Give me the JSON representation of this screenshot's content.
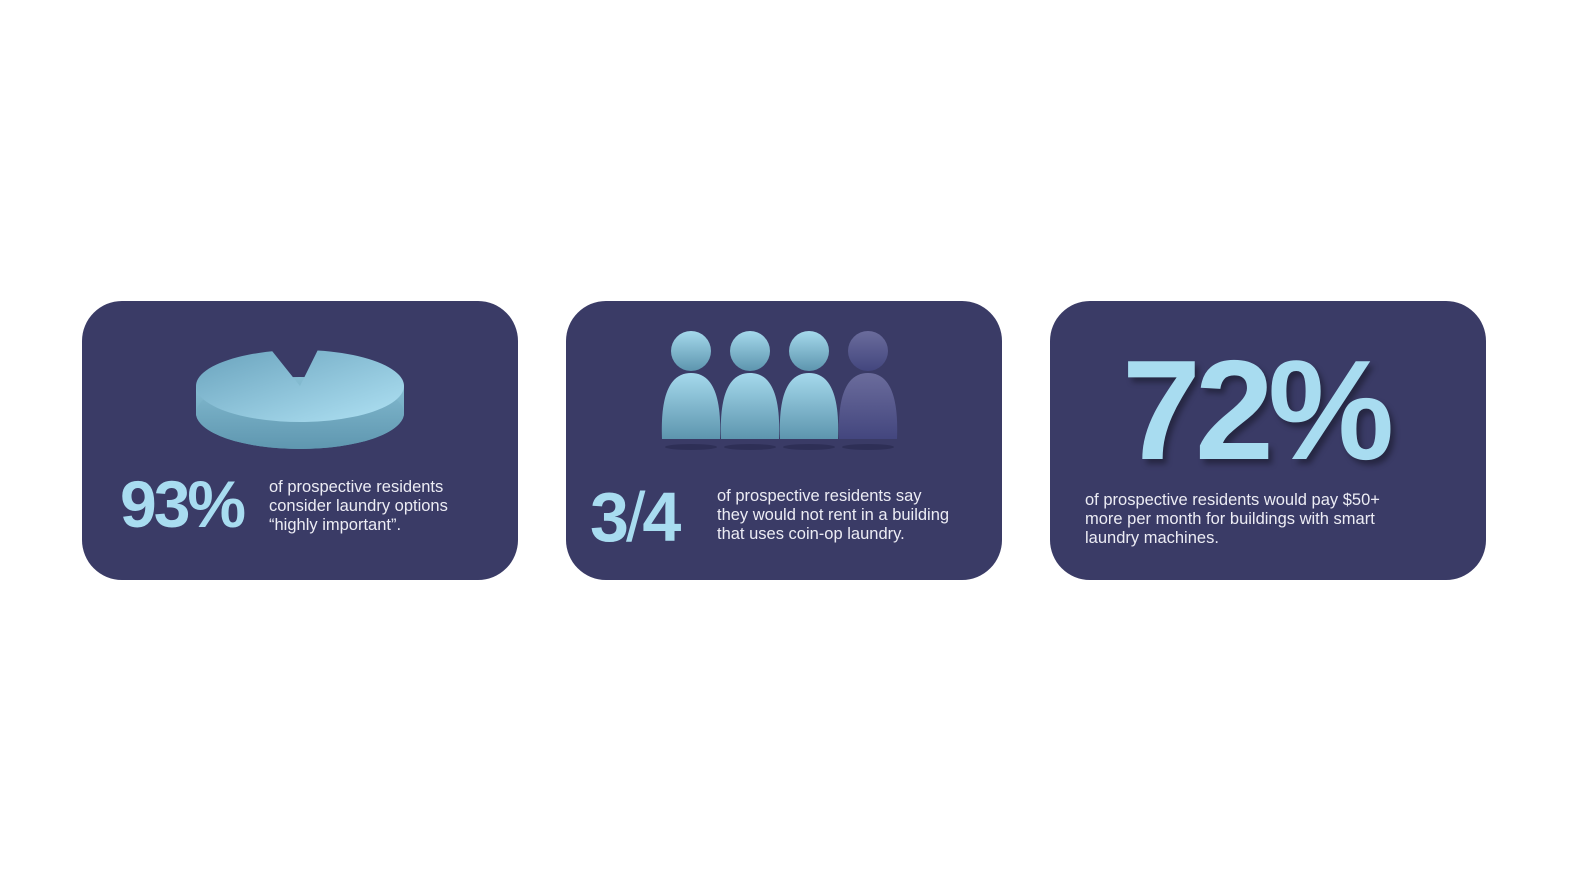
{
  "cards": [
    {
      "stat": "93%",
      "percent": 93,
      "icon": "pie-chart-icon",
      "lines": [
        "of prospective residents",
        "consider laundry options",
        "“highly important”."
      ]
    },
    {
      "stat_num": "3",
      "stat_sep": "/",
      "stat_den": "4",
      "filled": 3,
      "total": 4,
      "icon": "people-icon",
      "lines": [
        "of prospective residents say",
        "they would not rent in a building",
        "that uses coin-op laundry."
      ]
    },
    {
      "stat": "72%",
      "percent": 72,
      "lines": [
        "of prospective residents would pay $50+",
        "more per month for buildings with smart",
        "laundry machines."
      ]
    }
  ],
  "colors": {
    "card": "#3a3b66",
    "accent": "#a8dcf0",
    "text": "#ececf4",
    "inactive": "#55578f"
  }
}
